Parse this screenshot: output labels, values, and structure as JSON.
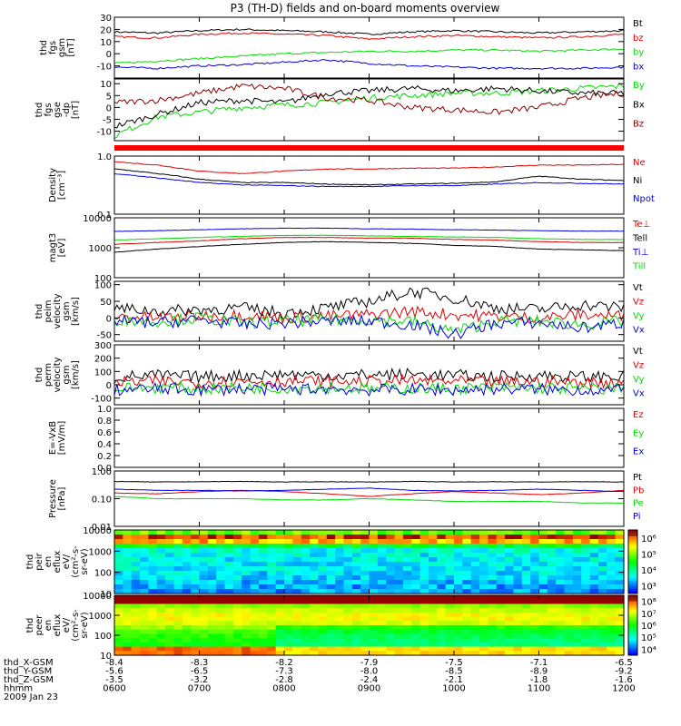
{
  "title": "P3 (TH-D) fields and on-board moments overview",
  "colors": {
    "black": "#000000",
    "red": "#e00000",
    "green": "#00dd00",
    "blue": "#0000e0",
    "darkred": "#8b0000"
  },
  "chart_data": [
    {
      "id": "fgs_gsm",
      "type": "line",
      "ylabel": [
        "thd",
        "fgs",
        "gsm",
        "[nT]"
      ],
      "ylim": [
        -20,
        30
      ],
      "yticks": [
        "-10",
        "0",
        "10",
        "20",
        "30"
      ],
      "series": [
        {
          "name": "Bt",
          "color": "black",
          "values": [
            18,
            17,
            19,
            20,
            19,
            18,
            16,
            18,
            19,
            18,
            17,
            18,
            19
          ]
        },
        {
          "name": "bz",
          "color": "red",
          "values": [
            14,
            13,
            16,
            17,
            16,
            15,
            12,
            14,
            15,
            14,
            13,
            14,
            16
          ]
        },
        {
          "name": "by",
          "color": "green",
          "values": [
            -8,
            -6,
            -4,
            -2,
            0,
            1,
            2,
            2,
            3,
            3,
            2,
            3,
            4
          ]
        },
        {
          "name": "bx",
          "color": "blue",
          "values": [
            -11,
            -12,
            -10,
            -9,
            -7,
            -5,
            -8,
            -10,
            -11,
            -12,
            -12,
            -12,
            -11
          ]
        }
      ]
    },
    {
      "id": "fgs_gse",
      "type": "line",
      "ylabel": [
        "thd",
        "fgs",
        "gse",
        "-dp",
        "[nT]"
      ],
      "ylim": [
        -14,
        12
      ],
      "yticks": [
        "-10",
        "-5",
        "0",
        "5",
        "10"
      ],
      "series": [
        {
          "name": "By",
          "color": "green",
          "values": [
            -12,
            -4,
            -2,
            0,
            1,
            2,
            4,
            5,
            6,
            6,
            7,
            8,
            9
          ]
        },
        {
          "name": "Bx",
          "color": "black",
          "values": [
            -8,
            -3,
            2,
            3,
            2,
            6,
            7,
            8,
            7,
            8,
            7,
            6,
            6
          ]
        },
        {
          "name": "Bz",
          "color": "darkred",
          "values": [
            2,
            3,
            6,
            9,
            8,
            4,
            3,
            0,
            -1,
            -2,
            0,
            4,
            6
          ]
        }
      ]
    },
    {
      "id": "density",
      "type": "line",
      "ylabel": [
        "Density",
        "[cm^-3]"
      ],
      "ylim": [
        0.1,
        1.0
      ],
      "yticks": [
        "0.1",
        "1.0"
      ],
      "series": [
        {
          "name": "Ne",
          "color": "red",
          "values": [
            0.8,
            0.7,
            0.55,
            0.5,
            0.55,
            0.6,
            0.6,
            0.62,
            0.62,
            0.65,
            0.7,
            0.7,
            0.72
          ]
        },
        {
          "name": "Ni",
          "color": "black",
          "values": [
            0.6,
            0.5,
            0.4,
            0.35,
            0.35,
            0.33,
            0.32,
            0.33,
            0.34,
            0.36,
            0.45,
            0.4,
            0.38
          ]
        },
        {
          "name": "Npot",
          "color": "blue",
          "values": [
            0.5,
            0.42,
            0.35,
            0.32,
            0.31,
            0.3,
            0.3,
            0.31,
            0.31,
            0.33,
            0.35,
            0.34,
            0.33
          ]
        }
      ]
    },
    {
      "id": "temperature",
      "type": "line",
      "ylabel": [
        "magt3",
        "[eV]"
      ],
      "ylim": [
        100,
        10000
      ],
      "yticks": [
        "100",
        "1000",
        "10000"
      ],
      "series": [
        {
          "name": "Te⊥",
          "color": "red",
          "values": [
            1300,
            1500,
            1700,
            2000,
            2200,
            2200,
            2100,
            2100,
            1900,
            1800,
            1600,
            1500,
            1500
          ]
        },
        {
          "name": "Tell",
          "color": "black",
          "values": [
            700,
            900,
            1100,
            1300,
            1500,
            1600,
            1500,
            1400,
            1200,
            1100,
            900,
            850,
            800
          ]
        },
        {
          "name": "Ti⊥",
          "color": "blue",
          "values": [
            3500,
            3700,
            4000,
            4300,
            4500,
            4500,
            4300,
            4200,
            4000,
            3900,
            3700,
            3600,
            3600
          ]
        },
        {
          "name": "Till",
          "color": "green",
          "values": [
            1800,
            2000,
            2200,
            2400,
            2600,
            2600,
            2500,
            2400,
            2300,
            2200,
            2000,
            1900,
            1900
          ]
        }
      ]
    },
    {
      "id": "velocity_gsm",
      "type": "line",
      "ylabel": [
        "thd",
        "peim",
        "velocity",
        "gsm",
        "[km/s]"
      ],
      "ylim": [
        -70,
        110
      ],
      "yticks": [
        "-50",
        "0",
        "50",
        "100"
      ],
      "series": [
        {
          "name": "Vt",
          "color": "black",
          "values": [
            30,
            20,
            25,
            30,
            15,
            30,
            50,
            80,
            60,
            30,
            25,
            40,
            30
          ]
        },
        {
          "name": "Vz",
          "color": "red",
          "values": [
            5,
            0,
            5,
            10,
            0,
            5,
            10,
            20,
            10,
            5,
            0,
            10,
            5
          ]
        },
        {
          "name": "Vy",
          "color": "green",
          "values": [
            -5,
            -10,
            0,
            -15,
            -10,
            -5,
            -5,
            -10,
            -40,
            -10,
            -10,
            -20,
            -10
          ]
        },
        {
          "name": "Vx",
          "color": "blue",
          "values": [
            -10,
            -15,
            -5,
            -20,
            -15,
            -10,
            -10,
            -20,
            -50,
            -15,
            -15,
            -30,
            -15
          ]
        }
      ]
    },
    {
      "id": "velocity_perp",
      "type": "line",
      "ylabel": [
        "thd",
        "perm",
        "velocity",
        "gsm",
        "[km/s]"
      ],
      "ylim": [
        -150,
        300
      ],
      "yticks": [
        "-100",
        "0",
        "100",
        "200",
        "300"
      ],
      "series": [
        {
          "name": "Vt",
          "color": "black",
          "values": [
            60,
            70,
            60,
            70,
            80,
            70,
            75,
            80,
            70,
            60,
            70,
            60,
            60
          ]
        },
        {
          "name": "Vz",
          "color": "red",
          "values": [
            20,
            25,
            20,
            25,
            30,
            25,
            25,
            30,
            25,
            20,
            25,
            20,
            20
          ]
        },
        {
          "name": "Vy",
          "color": "green",
          "values": [
            -30,
            -20,
            -30,
            -20,
            -25,
            -20,
            -30,
            -25,
            -30,
            -20,
            -25,
            -30,
            -30
          ]
        },
        {
          "name": "Vx",
          "color": "blue",
          "values": [
            -40,
            -30,
            -40,
            -30,
            -35,
            -30,
            -40,
            -35,
            -40,
            -30,
            -35,
            -40,
            -40
          ]
        }
      ]
    },
    {
      "id": "efield",
      "type": "line",
      "ylabel": [
        "E=-VxB",
        "[mV/m]"
      ],
      "ylim": [
        0,
        1.0
      ],
      "yticks": [
        "0.0",
        "0.2",
        "0.4",
        "0.6",
        "0.8",
        "1.0"
      ],
      "series": [
        {
          "name": "Ez",
          "color": "red",
          "values": []
        },
        {
          "name": "Ey",
          "color": "green",
          "values": []
        },
        {
          "name": "Ex",
          "color": "blue",
          "values": []
        }
      ]
    },
    {
      "id": "pressure",
      "type": "line",
      "ylabel": [
        "Pressure",
        "[nPa]"
      ],
      "ylim": [
        0.01,
        1.0
      ],
      "yticks": [
        "0.01",
        "0.10",
        "1.00"
      ],
      "series": [
        {
          "name": "Pt",
          "color": "black",
          "values": [
            0.42,
            0.4,
            0.41,
            0.42,
            0.4,
            0.41,
            0.4,
            0.42,
            0.4,
            0.41,
            0.4,
            0.41,
            0.4
          ]
        },
        {
          "name": "Pb",
          "color": "red",
          "values": [
            0.16,
            0.15,
            0.18,
            0.2,
            0.18,
            0.15,
            0.12,
            0.15,
            0.18,
            0.16,
            0.14,
            0.16,
            0.2
          ]
        },
        {
          "name": "Pe",
          "color": "green",
          "values": [
            0.12,
            0.1,
            0.1,
            0.1,
            0.09,
            0.09,
            0.1,
            0.09,
            0.08,
            0.08,
            0.08,
            0.07,
            0.07
          ]
        },
        {
          "name": "Pi",
          "color": "blue",
          "values": [
            0.22,
            0.2,
            0.2,
            0.19,
            0.2,
            0.22,
            0.24,
            0.2,
            0.19,
            0.2,
            0.22,
            0.2,
            0.18
          ]
        }
      ]
    },
    {
      "id": "ion_spectrogram",
      "type": "heatmap",
      "ylabel": [
        "thd",
        "peir",
        "en",
        "eflux",
        "eV/",
        "(cm^2-s-",
        "sr-eV)"
      ],
      "ylim": [
        10,
        10000
      ],
      "yticks": [
        "10",
        "100",
        "1000",
        "10000"
      ],
      "colorbar_ticks": [
        "10^3",
        "10^4",
        "10^5",
        "10^6"
      ]
    },
    {
      "id": "electron_spectrogram",
      "type": "heatmap",
      "ylabel": [
        "thd",
        "peer",
        "en",
        "eflux",
        "eV/",
        "(cm^2-s-",
        "sr-eV)"
      ],
      "ylim": [
        10,
        10000
      ],
      "yticks": [
        "10",
        "100",
        "1000",
        "10000"
      ],
      "colorbar_ticks": [
        "10^4",
        "10^5",
        "10^6",
        "10^7",
        "10^8"
      ]
    }
  ],
  "xaxis": {
    "rows": [
      {
        "label": "thd_X-GSM",
        "values": [
          "-8.4",
          "-8.3",
          "-8.2",
          "-7.9",
          "-7.5",
          "-7.1",
          "-6.5"
        ]
      },
      {
        "label": "thd_Y-GSM",
        "values": [
          "-5.6",
          "-6.5",
          "-7.3",
          "-8.0",
          "-8.5",
          "-8.9",
          "-9.2"
        ]
      },
      {
        "label": "thd_Z-GSM",
        "values": [
          "-3.5",
          "-3.2",
          "-2.8",
          "-2.4",
          "-2.1",
          "-1.8",
          "-1.6"
        ]
      },
      {
        "label": "hhmm",
        "values": [
          "0600",
          "0700",
          "0800",
          "0900",
          "1000",
          "1100",
          "1200"
        ]
      }
    ],
    "date": "2009 Jan 23"
  }
}
